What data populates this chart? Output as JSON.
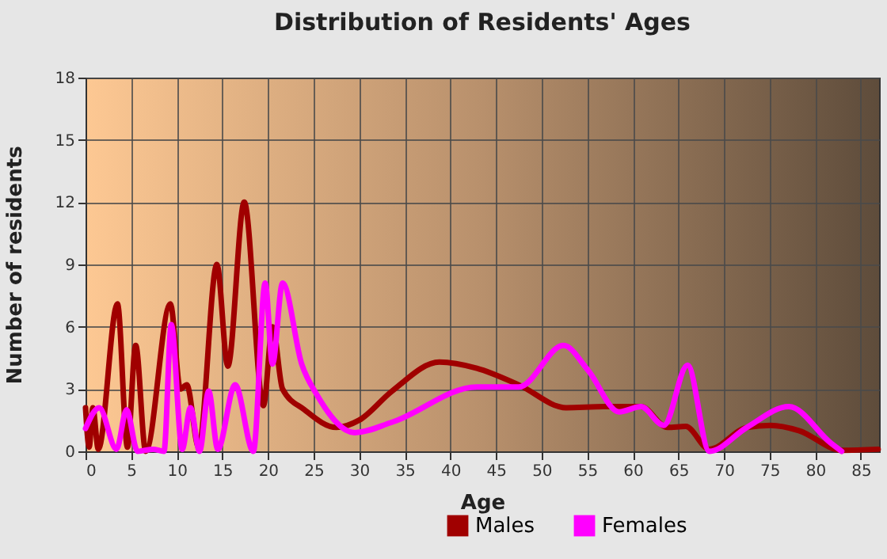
{
  "chart_data": {
    "type": "line",
    "title": "Distribution of Residents' Ages",
    "xlabel": "Age",
    "ylabel": "Number of residents",
    "xlim": [
      0,
      87
    ],
    "xticks": [
      0,
      5,
      10,
      15,
      20,
      25,
      30,
      35,
      40,
      45,
      50,
      55,
      60,
      65,
      70,
      75,
      80,
      85
    ],
    "ylim": [
      0,
      18
    ],
    "yticks": [
      0,
      3,
      6,
      9,
      12,
      15,
      18
    ],
    "grid": true,
    "legend": "bottom",
    "line_style": "solid",
    "marker": "none",
    "series": [
      {
        "name": "Males",
        "color": "#a00000",
        "x": [
          0,
          0.4,
          0.8,
          1.4,
          3.5,
          4.6,
          5.5,
          6.6,
          9.3,
          10.4,
          11.1,
          12.4,
          14.4,
          15.6,
          17.4,
          19.5,
          20.5,
          21.6,
          24,
          27.5,
          30,
          33.6,
          38.8,
          42.9,
          47.5,
          52.7,
          56.8,
          60.9,
          63.8,
          65.8,
          68.4,
          72.5,
          75.1,
          78.2,
          82.9,
          86.9
        ],
        "values": [
          2.1,
          0.2,
          2.1,
          0.1,
          7.1,
          0.2,
          5.1,
          0,
          7.1,
          3,
          3.2,
          0.2,
          9,
          4.1,
          12,
          2.2,
          6,
          3,
          2,
          1.15,
          1.5,
          2.9,
          4.3,
          4,
          3.2,
          2.1,
          2.15,
          2.15,
          1.15,
          1.2,
          0.1,
          1.15,
          1.25,
          1,
          0.05,
          0.1
        ]
      },
      {
        "name": "Females",
        "color": "#ff00ff",
        "x": [
          0,
          1.5,
          3.4,
          4.5,
          5.7,
          7.4,
          8.6,
          9.4,
          10.6,
          11.5,
          12.5,
          13.5,
          14.5,
          16.4,
          18.4,
          19.7,
          20.5,
          21.6,
          23.7,
          25.4,
          29.5,
          33.6,
          42.9,
          47.5,
          52.4,
          55.1,
          58.5,
          60.9,
          63.4,
          66,
          68.4,
          72.5,
          77.1,
          81.7,
          82.9
        ],
        "values": [
          1.1,
          2.1,
          0.1,
          2,
          0,
          0.1,
          0,
          6.1,
          0.1,
          2.1,
          0,
          2.9,
          0.1,
          3.2,
          0,
          8.1,
          4.2,
          8.1,
          4.2,
          2.7,
          0.9,
          1.4,
          3.1,
          3.1,
          5.1,
          3.9,
          1.9,
          2.15,
          1.25,
          4.15,
          0,
          1.15,
          2.15,
          0.4,
          0
        ]
      }
    ]
  }
}
